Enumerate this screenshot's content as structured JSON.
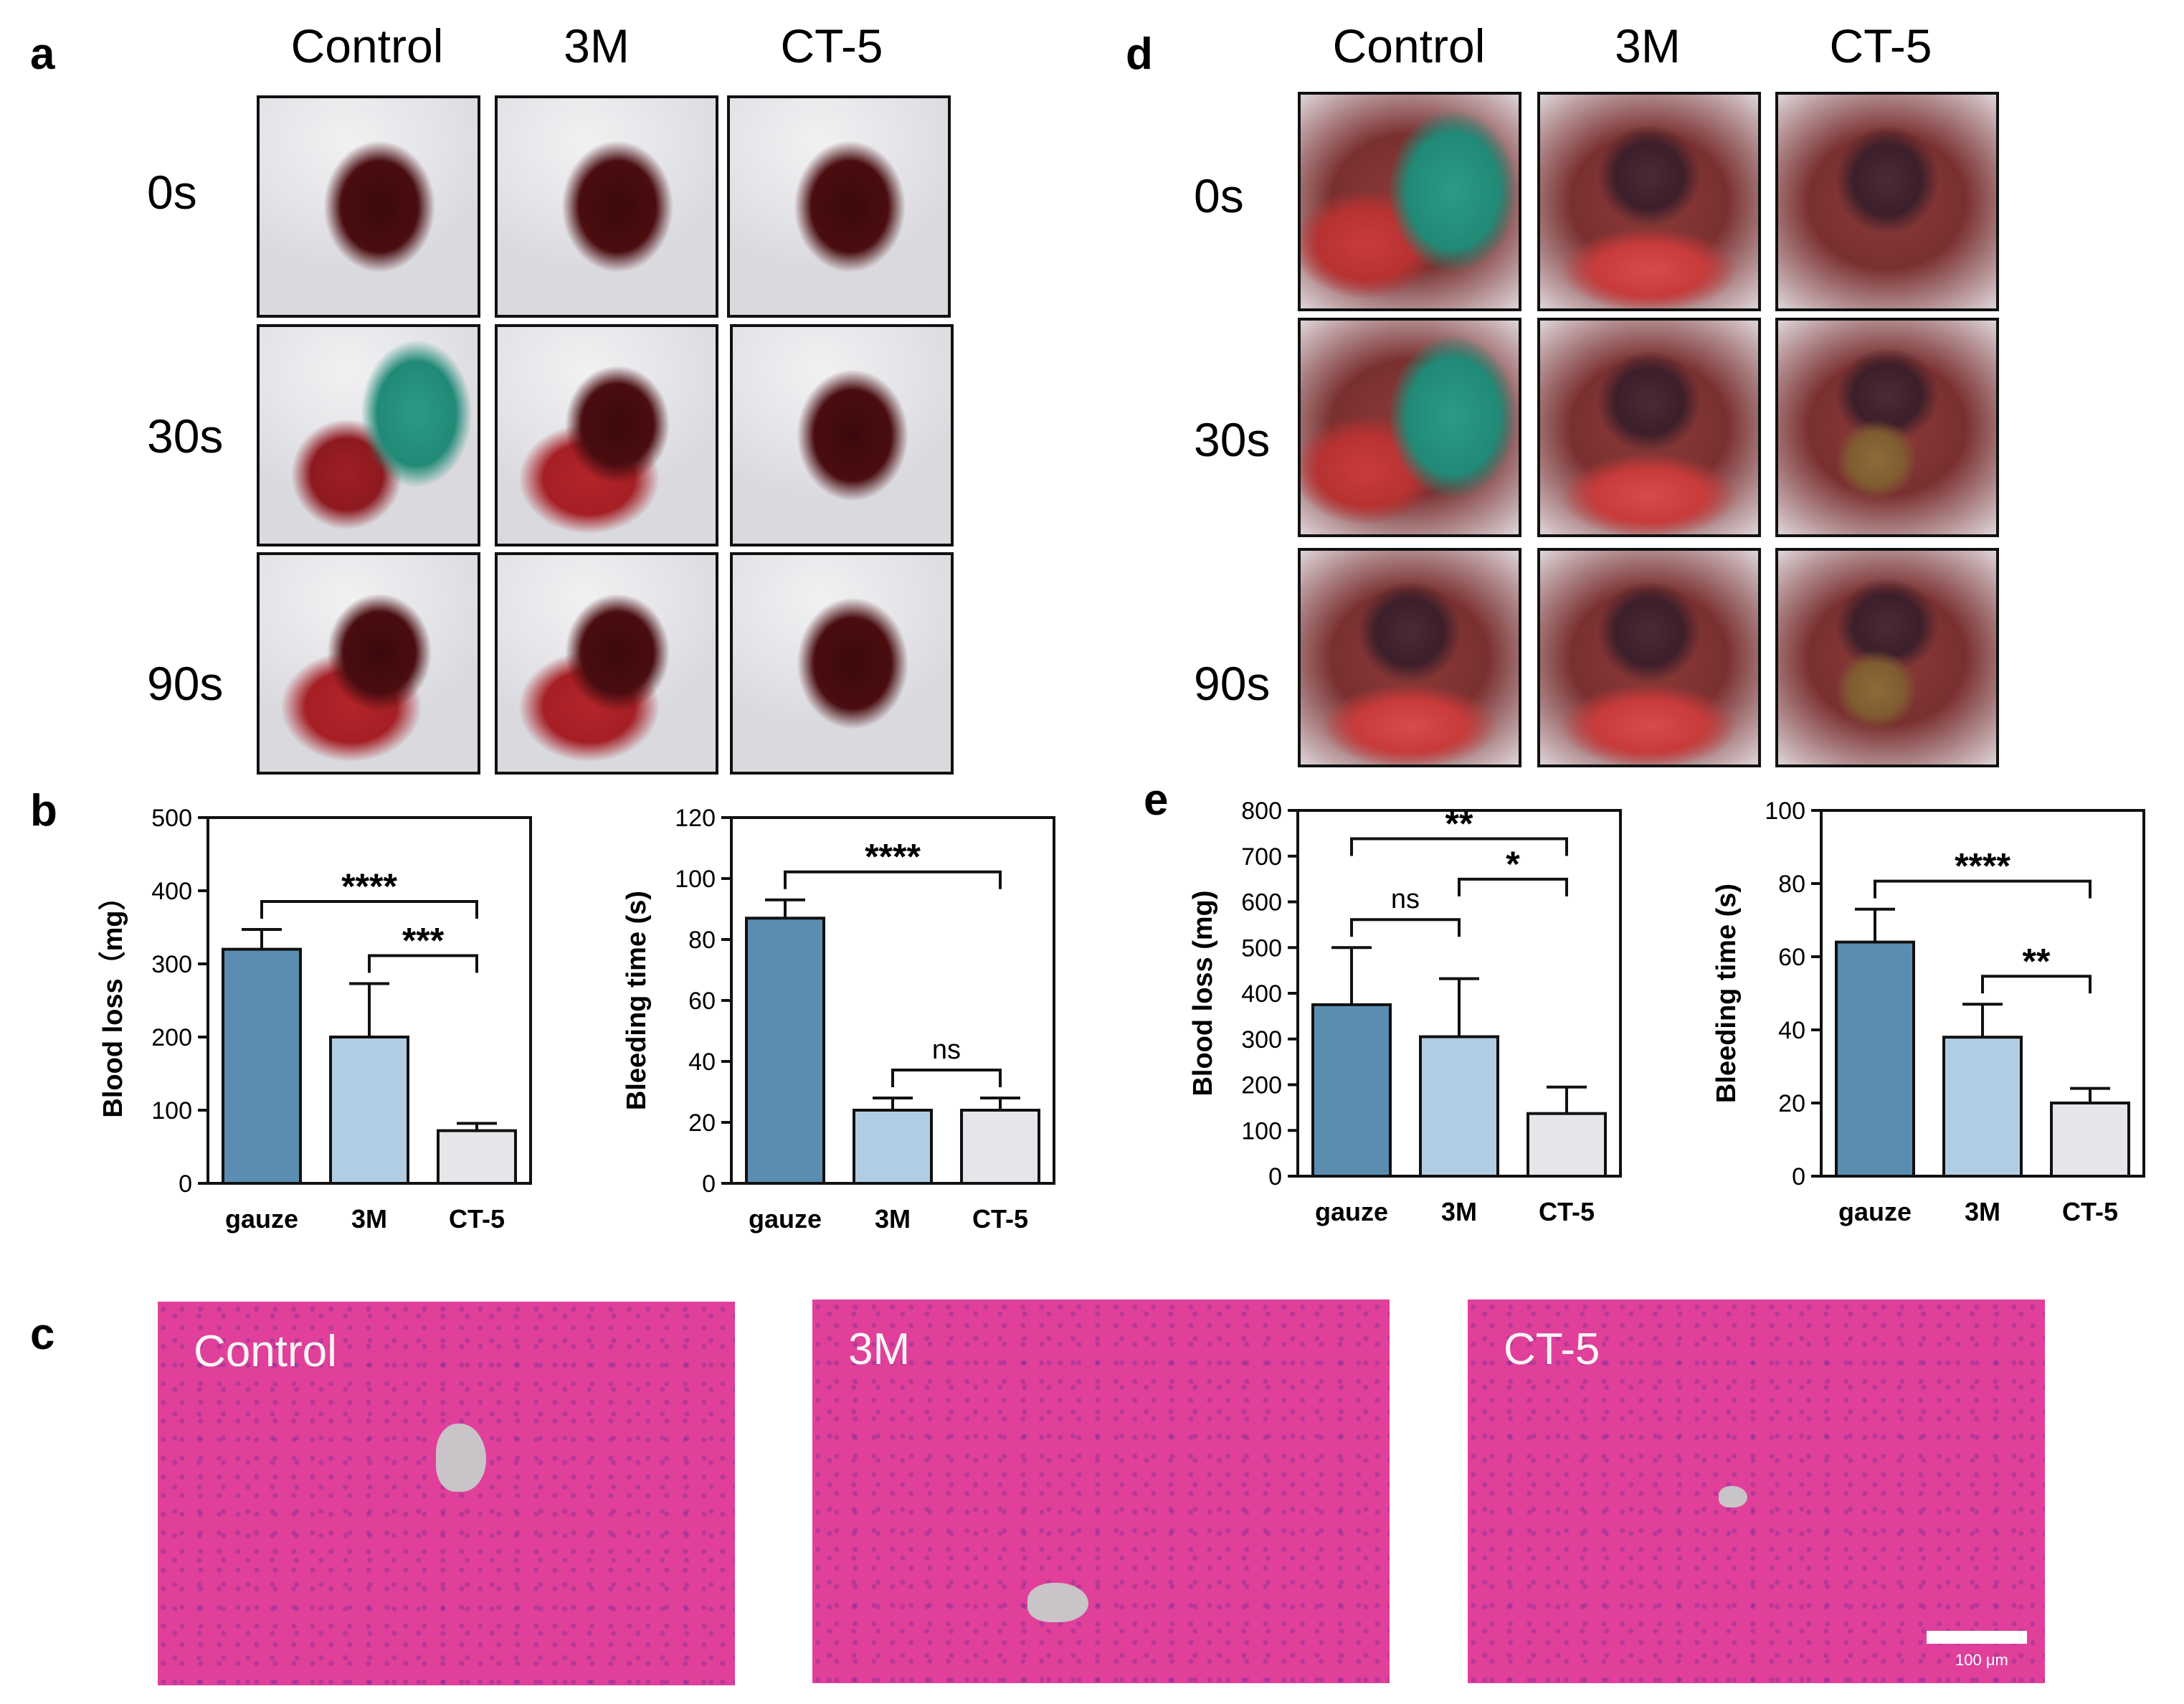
{
  "panels": {
    "a": "a",
    "b": "b",
    "c": "c",
    "d": "d",
    "e": "e"
  },
  "photo_grid_a": {
    "columns": [
      "Control",
      "3M",
      "CT-5"
    ],
    "rows": [
      "0s",
      "30s",
      "90s"
    ]
  },
  "photo_grid_d": {
    "columns": [
      "Control",
      "3M",
      "CT-5"
    ],
    "rows": [
      "0s",
      "30s",
      "90s"
    ]
  },
  "histology": {
    "labels": [
      "Control",
      "3M",
      "CT-5"
    ],
    "scale_bar_label": "100 μm"
  },
  "colors": {
    "bar_gauze": "#5b8db1",
    "bar_3m": "#b0cde3",
    "bar_ct5": "#e4e6e9"
  },
  "chart_data": [
    {
      "id": "b-blood-loss",
      "type": "bar",
      "categories": [
        "gauze",
        "3M",
        "CT-5"
      ],
      "values": [
        320,
        200,
        72
      ],
      "errors": [
        27,
        73,
        10
      ],
      "ylabel": "Blood loss（mg）",
      "ylim": [
        0,
        500
      ],
      "yticks": [
        "0",
        "100",
        "200",
        "300",
        "400",
        "500"
      ],
      "significance": [
        {
          "from": 0,
          "to": 2,
          "label": "****"
        },
        {
          "from": 1,
          "to": 2,
          "label": "***"
        }
      ]
    },
    {
      "id": "b-bleeding-time",
      "type": "bar",
      "categories": [
        "gauze",
        "3M",
        "CT-5"
      ],
      "values": [
        87,
        24,
        24
      ],
      "errors": [
        6,
        4,
        4
      ],
      "ylabel": "Bleeding time (s)",
      "ylim": [
        0,
        120
      ],
      "yticks": [
        "0",
        "20",
        "40",
        "60",
        "80",
        "100",
        "120"
      ],
      "significance": [
        {
          "from": 0,
          "to": 2,
          "label": "****"
        },
        {
          "from": 1,
          "to": 2,
          "label": "ns"
        }
      ]
    },
    {
      "id": "e-blood-loss",
      "type": "bar",
      "categories": [
        "gauze",
        "3M",
        "CT-5"
      ],
      "values": [
        375,
        305,
        137
      ],
      "errors": [
        125,
        127,
        58
      ],
      "ylabel": "Blood loss (mg)",
      "ylim": [
        0,
        800
      ],
      "yticks": [
        "0",
        "100",
        "200",
        "300",
        "400",
        "500",
        "600",
        "700",
        "800"
      ],
      "significance": [
        {
          "from": 0,
          "to": 2,
          "label": "**"
        },
        {
          "from": 0,
          "to": 1,
          "label": "ns"
        },
        {
          "from": 1,
          "to": 2,
          "label": "*"
        }
      ]
    },
    {
      "id": "e-bleeding-time",
      "type": "bar",
      "categories": [
        "gauze",
        "3M",
        "CT-5"
      ],
      "values": [
        64,
        38,
        20
      ],
      "errors": [
        9,
        9,
        4
      ],
      "ylabel": "Bleeding time (s)",
      "ylim": [
        0,
        100
      ],
      "yticks": [
        "0",
        "20",
        "40",
        "60",
        "80",
        "100"
      ],
      "significance": [
        {
          "from": 0,
          "to": 2,
          "label": "****"
        },
        {
          "from": 1,
          "to": 2,
          "label": "**"
        }
      ]
    }
  ]
}
